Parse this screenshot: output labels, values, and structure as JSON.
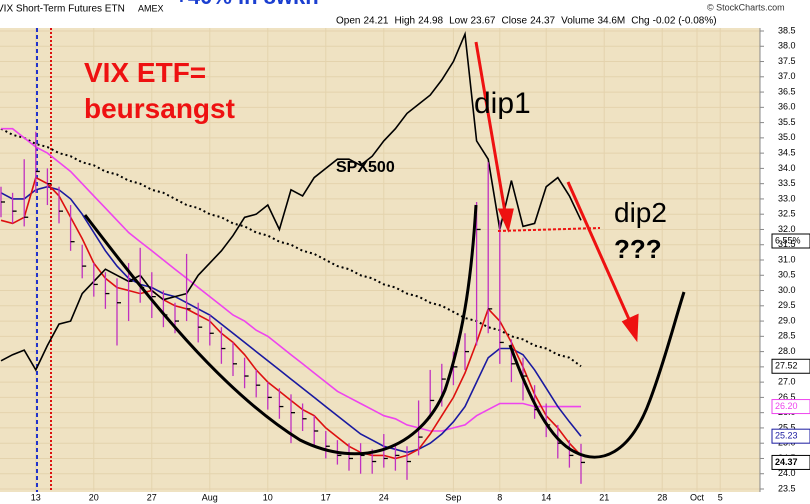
{
  "header": {
    "title": "VIX Short-Term Futures ETN",
    "exchange": "AMEX",
    "headline": "+40% in 8wkn",
    "credit": "© StockCharts.com",
    "stats": [
      {
        "label": "Open",
        "value": 24.21
      },
      {
        "label": "High",
        "value": 24.98
      },
      {
        "label": "Low",
        "value": 23.67
      },
      {
        "label": "Close",
        "value": 24.37
      },
      {
        "label": "Volume",
        "value": "34.6M"
      },
      {
        "label": "Chg",
        "value": "-0.02 (-0.08%)"
      }
    ],
    "change_box": "6.55%"
  },
  "chart_data": {
    "type": "ohlc",
    "annotations": [
      "VIX ETF=",
      "beursangst",
      "dip1",
      "dip2",
      "???"
    ],
    "ylim": [
      23.5,
      38.5
    ],
    "yticks": [
      23.5,
      {
        "value": 24,
        "label": "24.0"
      },
      24.5,
      {
        "value": 25,
        "label": "25.0"
      },
      25.5,
      {
        "value": 26,
        "label": "26.0"
      },
      26.5,
      {
        "value": 27,
        "label": "27.0"
      },
      27.5,
      {
        "value": 28,
        "label": "28.0"
      },
      28.5,
      {
        "value": 29,
        "label": "29.0"
      },
      29.5,
      {
        "value": 30,
        "label": "30.0"
      },
      30.5,
      {
        "value": 31,
        "label": "31.0"
      },
      31.5,
      {
        "value": 32,
        "label": "32.0"
      },
      32.5,
      {
        "value": 33,
        "label": "33.0"
      },
      33.5,
      {
        "value": 34,
        "label": "34.0"
      },
      34.5,
      {
        "value": 35,
        "label": "35.0"
      },
      35.5,
      {
        "value": 36,
        "label": "36.0"
      },
      36.5,
      {
        "value": 37,
        "label": "37.0"
      },
      37.5,
      {
        "value": 38,
        "label": "38.0"
      },
      38.5
    ],
    "grid": true,
    "categories": [
      null,
      null,
      null,
      "13",
      null,
      null,
      null,
      null,
      "20",
      null,
      null,
      null,
      null,
      "27",
      null,
      null,
      null,
      null,
      "Aug",
      null,
      null,
      null,
      null,
      "10",
      null,
      null,
      null,
      null,
      "17",
      null,
      null,
      null,
      null,
      "24",
      null,
      null,
      null,
      null,
      null,
      "Sep",
      null,
      null,
      null,
      "8",
      null,
      null,
      null,
      "14",
      null,
      null,
      null,
      null,
      "21",
      null,
      null,
      null,
      null,
      "28",
      null,
      null,
      "Oct",
      null,
      "5",
      null,
      null,
      null
    ],
    "bars": {
      "color": "#c030c0",
      "last_label": "24.37",
      "close": [
        32.9,
        32.6,
        32.4,
        33.9,
        33.5,
        32.6,
        31.6,
        30.8,
        30.2,
        29.9,
        29.6,
        30.3,
        30.1,
        29.8,
        29.2,
        29.0,
        29.4,
        28.8,
        28.6,
        28.1,
        27.6,
        27.2,
        26.9,
        26.5,
        26.2,
        26.0,
        25.8,
        25.4,
        24.9,
        24.6,
        24.5,
        24.6,
        24.4,
        24.5,
        24.6,
        24.4,
        25.2,
        26.4,
        27.1,
        27.5,
        28.0,
        32.0,
        29.4,
        28.3,
        27.6,
        27.2,
        26.1,
        25.6,
        25.0,
        24.6,
        24.37,
        null,
        null,
        null,
        null,
        null,
        null,
        null,
        null,
        null,
        null,
        null,
        null,
        null,
        null,
        null
      ],
      "high": [
        33.4,
        33.2,
        34.3,
        35.2,
        34.0,
        33.4,
        32.8,
        31.5,
        30.9,
        30.6,
        30.4,
        30.9,
        31.4,
        30.6,
        30.0,
        29.6,
        31.2,
        29.6,
        29.2,
        28.8,
        28.3,
        27.8,
        27.4,
        27.0,
        26.8,
        26.6,
        26.3,
        25.9,
        25.4,
        25.1,
        25.0,
        25.0,
        24.8,
        25.3,
        25.0,
        24.9,
        26.4,
        27.4,
        27.6,
        28.0,
        28.6,
        32.9,
        34.2,
        32.3,
        28.4,
        27.8,
        26.9,
        26.3,
        25.6,
        25.1,
        24.98,
        null,
        null,
        null,
        null,
        null,
        null,
        null,
        null,
        null,
        null,
        null,
        null,
        null,
        null,
        null
      ],
      "low": [
        32.4,
        32.2,
        32.1,
        33.2,
        32.8,
        32.2,
        31.3,
        30.4,
        29.8,
        29.4,
        28.2,
        29.0,
        29.6,
        29.1,
        28.8,
        28.6,
        29.0,
        28.3,
        28.2,
        27.6,
        27.2,
        26.8,
        26.5,
        26.1,
        25.8,
        25.0,
        25.4,
        24.9,
        24.5,
        24.3,
        24.1,
        24.0,
        24.0,
        24.2,
        24.1,
        23.8,
        24.6,
        25.8,
        26.2,
        26.9,
        27.4,
        28.2,
        28.6,
        27.6,
        27.0,
        26.4,
        25.8,
        25.2,
        24.5,
        24.2,
        23.67,
        null,
        null,
        null,
        null,
        null,
        null,
        null,
        null,
        null,
        null,
        null,
        null,
        null,
        null,
        null
      ]
    },
    "lines": [
      {
        "color": "#000000",
        "dashed": true,
        "last_label": "27.52",
        "values": [
          35.3,
          35.1,
          35.0,
          34.8,
          34.7,
          34.5,
          34.4,
          34.2,
          34.1,
          33.9,
          33.8,
          33.6,
          33.5,
          33.3,
          33.2,
          33.0,
          32.8,
          32.7,
          32.5,
          32.4,
          32.2,
          32.1,
          31.9,
          31.8,
          31.6,
          31.5,
          31.3,
          31.2,
          31.0,
          30.8,
          30.7,
          30.5,
          30.4,
          30.2,
          30.1,
          29.9,
          29.8,
          29.6,
          29.5,
          29.3,
          29.1,
          29.0,
          28.8,
          28.7,
          28.5,
          28.4,
          28.2,
          28.1,
          27.9,
          27.8,
          27.52,
          null,
          null,
          null,
          null,
          null,
          null,
          null,
          null,
          null,
          null,
          null,
          null,
          null,
          null,
          null
        ]
      },
      {
        "color": "#ee44ee",
        "last_label": "26.20",
        "values": [
          35.3,
          35.3,
          35.0,
          34.7,
          34.5,
          34.2,
          33.9,
          33.5,
          33.1,
          32.7,
          32.3,
          31.9,
          31.6,
          31.3,
          31.0,
          30.7,
          30.4,
          30.1,
          29.8,
          29.5,
          29.2,
          29.0,
          28.7,
          28.5,
          28.2,
          27.9,
          27.6,
          27.3,
          27.0,
          26.7,
          26.5,
          26.3,
          26.1,
          25.9,
          25.8,
          25.6,
          25.5,
          25.4,
          25.4,
          25.5,
          25.6,
          25.9,
          26.1,
          26.3,
          26.3,
          26.3,
          26.2,
          26.2,
          26.2,
          26.2,
          26.2,
          null,
          null,
          null,
          null,
          null,
          null,
          null,
          null,
          null,
          null,
          null,
          null,
          null,
          null,
          null
        ]
      },
      {
        "color": "#1a1aa0",
        "last_label": "25.23",
        "values": [
          33.2,
          33.0,
          33.0,
          33.3,
          33.4,
          33.3,
          33.0,
          32.5,
          31.9,
          31.3,
          30.8,
          30.4,
          30.2,
          30.1,
          29.9,
          29.8,
          29.6,
          29.4,
          29.2,
          28.9,
          28.6,
          28.3,
          28.0,
          27.7,
          27.4,
          27.1,
          26.8,
          26.5,
          26.2,
          25.9,
          25.6,
          25.3,
          25.1,
          24.9,
          24.8,
          24.7,
          24.8,
          25.0,
          25.3,
          25.7,
          26.2,
          27.0,
          27.8,
          28.1,
          28.1,
          27.9,
          27.4,
          26.8,
          26.2,
          25.7,
          25.23,
          null,
          null,
          null,
          null,
          null,
          null,
          null,
          null,
          null,
          null,
          null,
          null,
          null,
          null,
          null
        ]
      },
      {
        "color": "#dd1010",
        "values": [
          32.3,
          32.2,
          32.4,
          33.7,
          33.5,
          33.1,
          32.4,
          31.7,
          30.9,
          30.4,
          30.1,
          30.0,
          29.9,
          30.0,
          29.7,
          29.5,
          29.4,
          29.2,
          29.0,
          28.6,
          28.3,
          27.9,
          27.4,
          27.0,
          26.7,
          26.4,
          26.1,
          25.9,
          25.5,
          25.2,
          24.9,
          24.7,
          24.6,
          24.6,
          24.5,
          24.6,
          24.8,
          25.3,
          25.9,
          26.5,
          27.3,
          28.3,
          29.4,
          29.0,
          28.3,
          27.5,
          26.6,
          25.9,
          25.5,
          25.0,
          24.6,
          null,
          null,
          null,
          null,
          null,
          null,
          null,
          null,
          null,
          null,
          null,
          null,
          null,
          null,
          null
        ]
      },
      {
        "name": "SPX500",
        "color": "#000000",
        "values": [
          27.7,
          27.9,
          28.05,
          27.4,
          28.2,
          28.9,
          29.0,
          29.9,
          30.3,
          30.7,
          30.5,
          30.3,
          30.5,
          30.0,
          29.7,
          29.8,
          29.9,
          30.5,
          30.9,
          31.3,
          31.8,
          32.4,
          32.5,
          32.8,
          32.0,
          33.3,
          33.1,
          33.7,
          34.0,
          34.3,
          34.3,
          34.1,
          34.4,
          34.9,
          35.3,
          35.8,
          36.1,
          36.4,
          36.9,
          37.5,
          38.4,
          34.9,
          34.3,
          32.0,
          33.6,
          32.1,
          32.2,
          33.4,
          33.7,
          33.1,
          32.3,
          null,
          null,
          null,
          null,
          null,
          null,
          null,
          null,
          null,
          null,
          null,
          null,
          null,
          null,
          null
        ]
      }
    ]
  }
}
